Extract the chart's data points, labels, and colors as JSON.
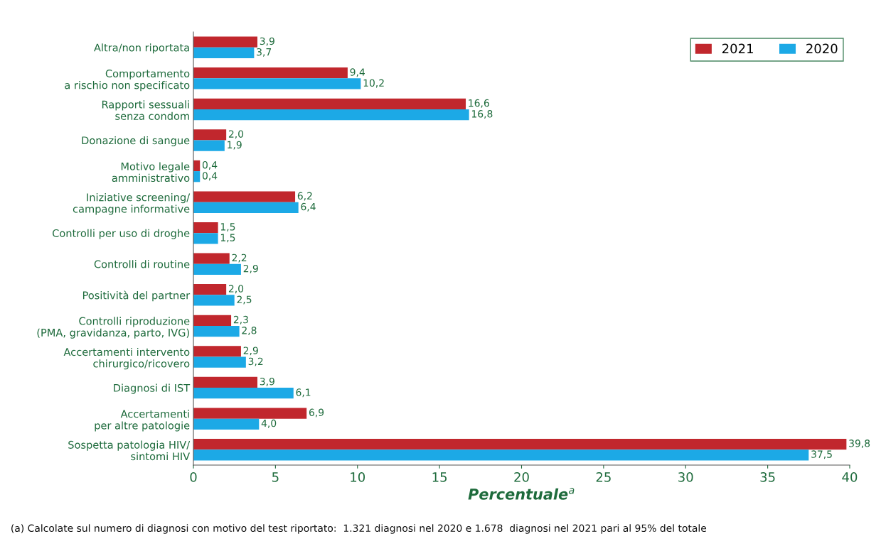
{
  "chart_data": {
    "type": "bar",
    "orientation": "horizontal",
    "xlabel": "Percentuale$^{a}$",
    "categories": [
      "Altra/non riportata",
      "Comportamento\na rischio non specificato",
      "Rapporti sessuali\nsenza condom",
      "Donazione di sangue",
      "Motivo legale\namministrativo",
      "Iniziative screening/\ncampagne informative",
      "Controlli per uso di droghe",
      "Controlli di routine",
      "Positività del partner",
      "Controlli riproduzione\n(PMA, gravidanza, parto, IVG)",
      "Accertamenti intervento\nchirurgico/ricovero",
      "Diagnosi di IST",
      "Accertamenti\nper altre patologie",
      "Sospetta patologia HIV/\nsintomi HIV"
    ],
    "series": [
      {
        "name": "2021",
        "color": "#c1272d",
        "values": [
          3.9,
          9.4,
          16.6,
          2.0,
          0.4,
          6.2,
          1.5,
          2.2,
          2.0,
          2.3,
          2.9,
          3.9,
          6.9,
          39.8
        ],
        "value_labels": [
          "3,9",
          "9,4",
          "16,6",
          "2,0",
          "0,4",
          "6,2",
          "1,5",
          "2,2",
          "2,0",
          "2,3",
          "2,9",
          "3,9",
          "6,9",
          "39,8"
        ]
      },
      {
        "name": "2020",
        "color": "#1ca9e6",
        "values": [
          3.7,
          10.2,
          16.8,
          1.9,
          0.4,
          6.4,
          1.5,
          2.9,
          2.5,
          2.8,
          3.2,
          6.1,
          4.0,
          37.5
        ],
        "value_labels": [
          "3,7",
          "10,2",
          "16,8",
          "1,9",
          "0,4",
          "6,4",
          "1,5",
          "2,9",
          "2,5",
          "2,8",
          "3,2",
          "6,1",
          "4,0",
          "37,5"
        ]
      }
    ],
    "xlim": [
      0,
      40
    ],
    "xticks": [
      0,
      5,
      10,
      15,
      20,
      25,
      30,
      35,
      40
    ],
    "legend": "top right",
    "annotations": [
      "(a) Calcolate sul numero di diagnosi con motivo del test riportato:  1.321 diagnosi nel 2020 e 1.678  diagnosi nel 2021 pari al 95% del totale"
    ]
  }
}
